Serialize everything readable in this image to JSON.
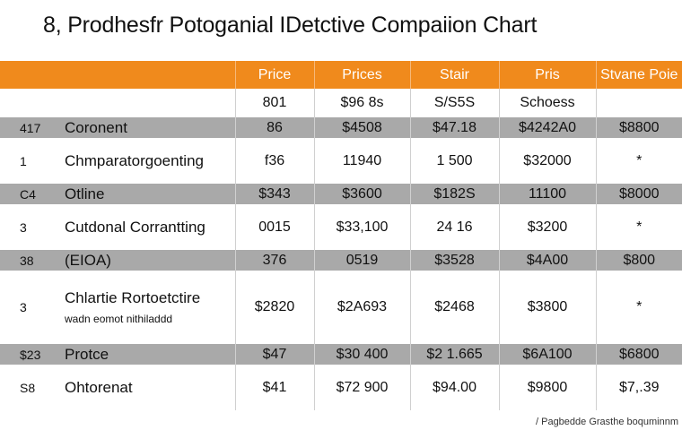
{
  "title": "8, Prodhesfr Potoganial IDetctive Compaiion Chart",
  "footnote": "/ Pagbedde Grasthe boquminnm",
  "colors": {
    "header": "#f08a1c",
    "band": "#a9a9a9"
  },
  "chart_data": {
    "type": "table",
    "columns": [
      "",
      "",
      "Price",
      "Prices",
      "Stair",
      "Pris",
      "Stvane Poie"
    ],
    "subheader": [
      "",
      "",
      "801",
      "$96 8s",
      "S/S5S",
      "Schoess",
      ""
    ],
    "rows": [
      {
        "id": "417",
        "label": "Coronent",
        "sublabel": "",
        "cells": [
          "86",
          "$4508",
          "$47.18",
          "$4242A0",
          "$8800"
        ]
      },
      {
        "id": "1",
        "label": "Chmparatorgoenting",
        "sublabel": "",
        "cells": [
          "f36",
          "11940",
          "1 500",
          "$32000",
          "*"
        ]
      },
      {
        "id": "C4",
        "label": "Otline",
        "sublabel": "",
        "cells": [
          "$343",
          "$3600",
          "$182S",
          "11100",
          "$8000"
        ]
      },
      {
        "id": "3",
        "label": "Cutdonal Corrantting",
        "sublabel": "",
        "cells": [
          "0015",
          "$33,100",
          "24 16",
          "$3200",
          "*"
        ]
      },
      {
        "id": "38",
        "label": "(EIOA)",
        "sublabel": "",
        "cells": [
          "376",
          "0519",
          "$3528",
          "$4A00",
          "$800"
        ]
      },
      {
        "id": "3",
        "label": "Chlartie Rortoetctire",
        "sublabel": "wadn eomot nithiladdd",
        "cells": [
          "$2820",
          "$2A693",
          "$2468",
          "$3800",
          "*"
        ]
      },
      {
        "id": "$23",
        "label": "Protce",
        "sublabel": "",
        "cells": [
          "$47",
          "$30 400",
          "$2 1.665",
          "$6A100",
          "$6800"
        ]
      },
      {
        "id": "S8",
        "label": "Ohtorenat",
        "sublabel": "",
        "cells": [
          "$41",
          "$72 900",
          "$94.00",
          "$9800",
          "$7,.39"
        ]
      }
    ]
  }
}
